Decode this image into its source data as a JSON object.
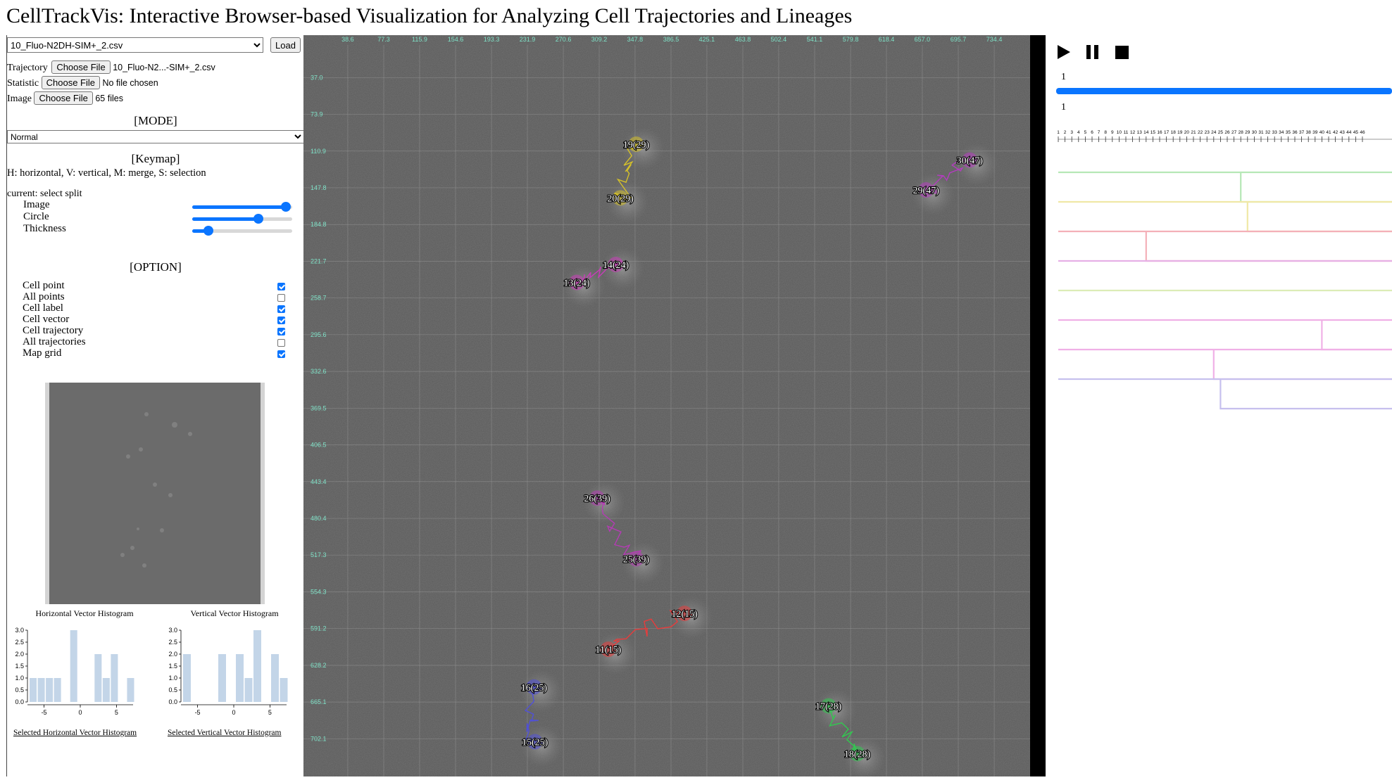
{
  "app": {
    "title": "CellTrackVis: Interactive Browser-based Visualization for Analyzing Cell Trajectories and Lineages"
  },
  "file_select": {
    "value": "10_Fluo-N2DH-SIM+_2.csv",
    "load_label": "Load"
  },
  "inputs": {
    "trajectory": {
      "label": "Trajectory",
      "button": "Choose File",
      "status": "10_Fluo-N2...-SIM+_2.csv"
    },
    "statistic": {
      "label": "Statistic",
      "button": "Choose File",
      "status": "No file chosen"
    },
    "image": {
      "label": "Image",
      "button": "Choose File",
      "status": "65 files"
    }
  },
  "mode": {
    "header": "[MODE]",
    "value": "Normal"
  },
  "keymap": {
    "header": "[Keymap]",
    "text": "H: horizontal, V: vertical, M: merge, S: selection",
    "current": "current: select split"
  },
  "sliders": [
    {
      "label": "Image",
      "value": 0.94
    },
    {
      "label": "Circle",
      "value": 0.66
    },
    {
      "label": "Thickness",
      "value": 0.16
    }
  ],
  "options": {
    "header": "[OPTION]",
    "items": [
      {
        "label": "Cell point",
        "checked": true
      },
      {
        "label": "All points",
        "checked": false
      },
      {
        "label": "Cell label",
        "checked": true
      },
      {
        "label": "Cell vector",
        "checked": true
      },
      {
        "label": "Cell trajectory",
        "checked": true
      },
      {
        "label": "All trajectories",
        "checked": false
      },
      {
        "label": "Map grid",
        "checked": true
      }
    ]
  },
  "histograms": {
    "horizontal": {
      "title": "Horizontal Vector Histogram",
      "link": "Selected Horizontal Vector Histogram",
      "values": [
        1,
        1,
        1,
        1,
        0,
        3,
        0,
        0,
        2,
        1,
        2,
        0,
        1
      ],
      "x_ticks": [
        "-5",
        "0",
        "5"
      ],
      "y_ticks": [
        "0.0",
        "0.5",
        "1.0",
        "1.5",
        "2.0",
        "2.5",
        "3.0"
      ]
    },
    "vertical": {
      "title": "Vertical Vector Histogram",
      "link": "Selected Vertical Vector Histogram",
      "values": [
        2,
        0,
        0,
        0,
        2,
        0,
        2,
        1,
        3,
        0,
        2,
        1
      ],
      "x_ticks": [
        "-5",
        "0",
        "5"
      ],
      "y_ticks": [
        "0.0",
        "0.5",
        "1.0",
        "1.5",
        "2.0",
        "2.5",
        "3.0"
      ]
    }
  },
  "map": {
    "x_ticks": [
      "38.6",
      "77.3",
      "115.9",
      "154.6",
      "193.3",
      "231.9",
      "270.6",
      "309.2",
      "347.8",
      "386.5",
      "425.1",
      "463.8",
      "502.4",
      "541.1",
      "579.8",
      "618.4",
      "657.0",
      "695.7",
      "734.4"
    ],
    "y_ticks": [
      "37.0",
      "73.9",
      "110.9",
      "147.8",
      "184.8",
      "221.7",
      "258.7",
      "295.6",
      "332.6",
      "369.5",
      "406.5",
      "443.4",
      "480.4",
      "517.3",
      "554.3",
      "591.2",
      "628.2",
      "665.1",
      "702.1"
    ],
    "extent": {
      "x": [
        0,
        773
      ],
      "y": [
        0,
        740
      ]
    },
    "cells": [
      {
        "label": "19(29)",
        "x": 349,
        "y": 104,
        "color": "#d4c02a"
      },
      {
        "label": "20(29)",
        "x": 332,
        "y": 158,
        "color": "#d4c02a"
      },
      {
        "label": "14(24)",
        "x": 327,
        "y": 225,
        "color": "#c83cb8"
      },
      {
        "label": "13(24)",
        "x": 285,
        "y": 243,
        "color": "#c83cb8"
      },
      {
        "label": "30(47)",
        "x": 708,
        "y": 120,
        "color": "#b43cc0"
      },
      {
        "label": "29(47)",
        "x": 661,
        "y": 150,
        "color": "#b43cc0"
      },
      {
        "label": "26(39)",
        "x": 307,
        "y": 460,
        "color": "#b43cb4"
      },
      {
        "label": "25(39)",
        "x": 349,
        "y": 521,
        "color": "#b43cb4"
      },
      {
        "label": "12(15)",
        "x": 401,
        "y": 576,
        "color": "#e83c3c"
      },
      {
        "label": "11(15)",
        "x": 319,
        "y": 612,
        "color": "#e83c3c"
      },
      {
        "label": "16(25)",
        "x": 239,
        "y": 650,
        "color": "#5050d8"
      },
      {
        "label": "15(25)",
        "x": 240,
        "y": 705,
        "color": "#5050d8"
      },
      {
        "label": "17(28)",
        "x": 556,
        "y": 669,
        "color": "#32c850"
      },
      {
        "label": "18(28)",
        "x": 587,
        "y": 717,
        "color": "#32c850"
      }
    ]
  },
  "player": {
    "play_icon": "play-icon",
    "pause_icon": "pause-icon",
    "stop_icon": "stop-icon",
    "frame_top": "1",
    "frame_progress": 1.0,
    "frame_bottom": "1",
    "frame_count": 46
  },
  "lineage": {
    "tracks": [
      {
        "color": "#b6e8b6",
        "split": 28
      },
      {
        "color": "#f0e8a6",
        "split": 29
      },
      {
        "color": "#f4b0b8",
        "split": 14
      },
      {
        "color": "#e6b0e6",
        "split": null
      },
      {
        "color": "#dcecb6",
        "split": null
      },
      {
        "color": "#f0b0e6",
        "split": 40
      },
      {
        "color": "#f0b0e6",
        "split": 24
      },
      {
        "color": "#c6c0ee",
        "split": 25
      }
    ]
  }
}
